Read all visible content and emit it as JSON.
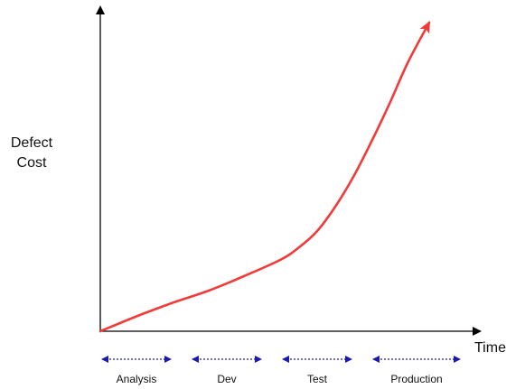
{
  "chart_data": {
    "type": "line",
    "ylabel_lines": [
      "Defect",
      "Cost"
    ],
    "xlabel": "Time",
    "xlim": [
      0,
      100
    ],
    "ylim": [
      0,
      100
    ],
    "series": [
      {
        "x": [
          0,
          10,
          20,
          30,
          40,
          50,
          55,
          60,
          65,
          70,
          75,
          80,
          85,
          91
        ],
        "y": [
          0,
          5.5,
          10.5,
          15,
          20.5,
          26.5,
          31,
          37,
          46,
          57,
          70,
          84,
          99,
          114
        ],
        "color": "#f23a3a",
        "end_arrow": true
      }
    ],
    "phases": [
      {
        "label": "Analysis",
        "start": 0,
        "end": 20
      },
      {
        "label": "Dev",
        "start": 25,
        "end": 45
      },
      {
        "label": "Test",
        "start": 50,
        "end": 70
      },
      {
        "label": "Production",
        "start": 75,
        "end": 100
      }
    ],
    "phase_color": "#1a1ab0",
    "axis_color": "#000000"
  }
}
